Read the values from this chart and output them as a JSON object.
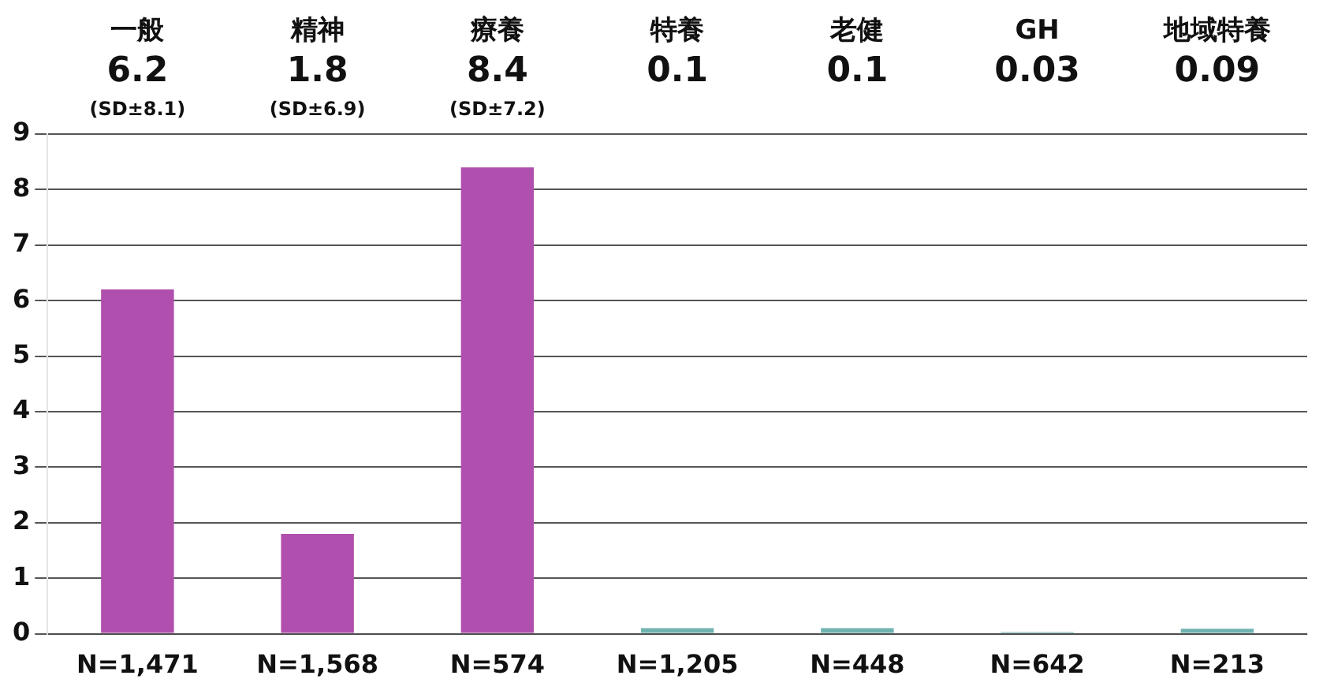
{
  "chart_data": {
    "type": "bar",
    "categories": [
      "N=1,471",
      "N=1,568",
      "N=574",
      "N=1,205",
      "N=448",
      "N=642",
      "N=213"
    ],
    "values": [
      6.2,
      1.8,
      8.4,
      0.1,
      0.1,
      0.03,
      0.09
    ],
    "colors": [
      "#b04fae",
      "#b04fae",
      "#b04fae",
      "#6fb3b0",
      "#6fb3b0",
      "#6fb3b0",
      "#6fb3b0"
    ],
    "value_labels": [
      "6.2",
      "1.8",
      "8.4",
      "0.1",
      "0.1",
      "0.03",
      "0.09"
    ],
    "annotations": [
      "一般",
      "精神",
      "療養",
      "特養",
      "老健",
      "GH",
      "地域特養",
      "(SD±8.1)",
      "(SD±6.9)",
      "(SD±7.2)"
    ],
    "ylim": [
      0,
      9
    ],
    "yticks": [
      0,
      1,
      2,
      3,
      4,
      5,
      6,
      7,
      8,
      9
    ],
    "grid": "y",
    "legend": false
  }
}
